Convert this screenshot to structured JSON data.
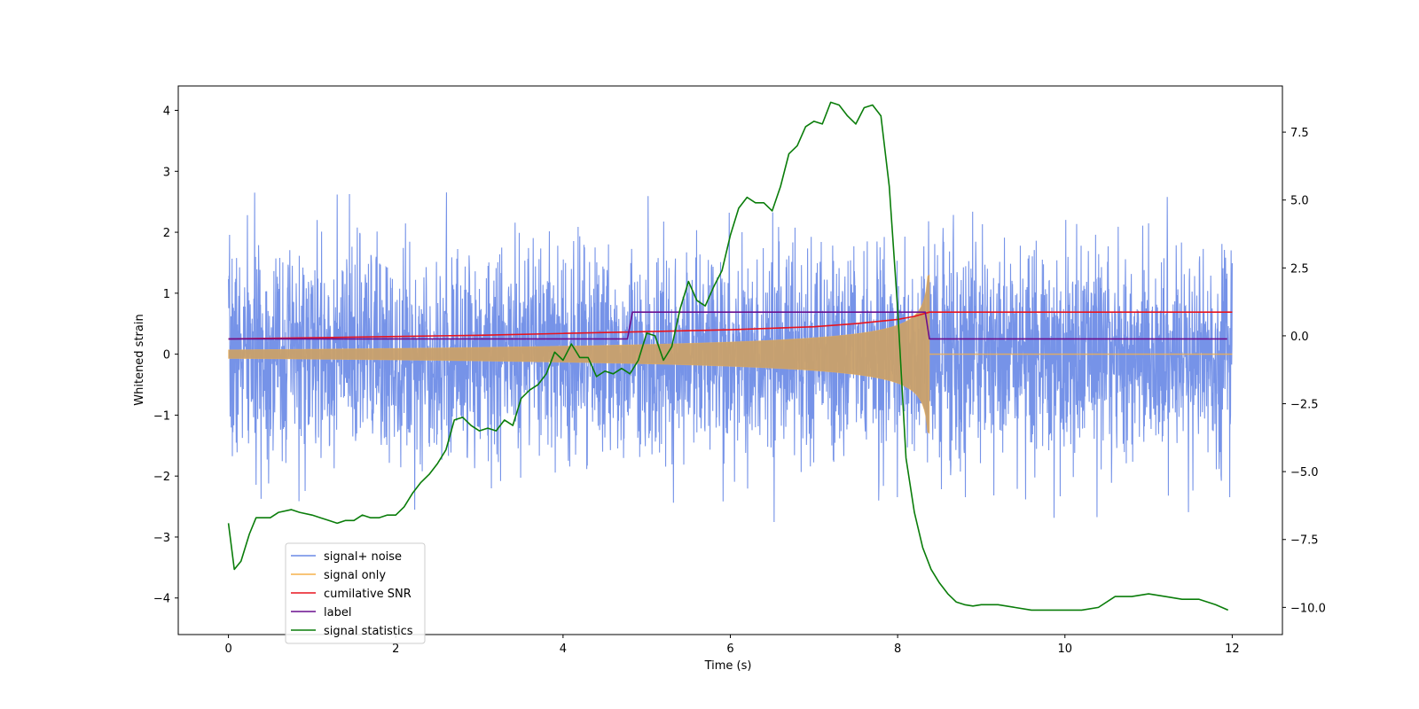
{
  "chart_data": {
    "type": "line",
    "title": "",
    "xlabel": "Time (s)",
    "ylabel": "Whitened strain",
    "xlim": [
      -0.6,
      12.6
    ],
    "ylim": [
      -4.6,
      4.4
    ],
    "ylim_right": [
      -11,
      9.2
    ],
    "x_ticks": [
      0,
      2,
      4,
      6,
      8,
      10,
      12
    ],
    "x_tick_labels": [
      "0",
      "2",
      "4",
      "6",
      "8",
      "10",
      "12"
    ],
    "y_ticks": [
      -4,
      -3,
      -2,
      -1,
      0,
      1,
      2,
      3,
      4
    ],
    "y_tick_labels": [
      "−4",
      "−3",
      "−2",
      "−1",
      "0",
      "1",
      "2",
      "3",
      "4"
    ],
    "y_right_ticks": [
      -10,
      -7.5,
      -5,
      -2.5,
      0,
      2.5,
      5,
      7.5
    ],
    "y_right_tick_labels": [
      "−10.0",
      "−7.5",
      "−5.0",
      "−2.5",
      "0.0",
      "2.5",
      "5.0",
      "7.5"
    ],
    "grid": false,
    "legend_position": "lower-left",
    "colors": {
      "noise": "#6a8ae6",
      "signal": "#f5b04a",
      "snr": "#e8141e",
      "label": "#6a0f8e",
      "stats": "#0a7d0a"
    },
    "noise": {
      "t_start": 0,
      "t_end": 12,
      "std": 0.85,
      "seed": 7
    },
    "signal": {
      "t_end": 8.38,
      "amp_start": 0.07,
      "amp_end": 1.3,
      "tail_end": 12
    },
    "series": [
      {
        "name": "signal+ noise",
        "axis": "left",
        "kind": "noise"
      },
      {
        "name": "signal only",
        "axis": "left",
        "kind": "chirp"
      },
      {
        "name": "cumilative SNR",
        "axis": "left",
        "kind": "line",
        "x": [
          0,
          1,
          2,
          3,
          4,
          5,
          6,
          7,
          7.5,
          8,
          8.2,
          8.38,
          9,
          10,
          11,
          12
        ],
        "y": [
          0.25,
          0.27,
          0.29,
          0.31,
          0.34,
          0.37,
          0.4,
          0.45,
          0.5,
          0.57,
          0.62,
          0.69,
          0.69,
          0.69,
          0.69,
          0.69
        ]
      },
      {
        "name": "label",
        "axis": "left",
        "kind": "line",
        "x": [
          0,
          4.77,
          4.83,
          8.33,
          8.38,
          11.94
        ],
        "y": [
          0.25,
          0.25,
          0.69,
          0.69,
          0.25,
          0.25
        ]
      },
      {
        "name": "signal statistics",
        "axis": "right",
        "kind": "line",
        "x": [
          0,
          0.07,
          0.15,
          0.25,
          0.33,
          0.5,
          0.6,
          0.75,
          0.85,
          1.0,
          1.1,
          1.2,
          1.3,
          1.4,
          1.5,
          1.6,
          1.7,
          1.8,
          1.9,
          2.0,
          2.1,
          2.2,
          2.3,
          2.4,
          2.5,
          2.6,
          2.7,
          2.8,
          2.9,
          3.0,
          3.1,
          3.2,
          3.3,
          3.4,
          3.5,
          3.6,
          3.7,
          3.8,
          3.9,
          4.0,
          4.1,
          4.2,
          4.3,
          4.4,
          4.5,
          4.6,
          4.7,
          4.8,
          4.9,
          5.0,
          5.1,
          5.2,
          5.3,
          5.4,
          5.5,
          5.6,
          5.7,
          5.8,
          5.9,
          6.0,
          6.1,
          6.2,
          6.3,
          6.4,
          6.5,
          6.6,
          6.7,
          6.8,
          6.9,
          7.0,
          7.1,
          7.2,
          7.3,
          7.4,
          7.5,
          7.6,
          7.7,
          7.8,
          7.9,
          8.0,
          8.1,
          8.2,
          8.3,
          8.4,
          8.5,
          8.6,
          8.7,
          8.8,
          8.9,
          9.0,
          9.2,
          9.4,
          9.6,
          9.8,
          10.0,
          10.2,
          10.4,
          10.6,
          10.8,
          11.0,
          11.2,
          11.4,
          11.6,
          11.8,
          11.95
        ],
        "y": [
          -6.9,
          -8.6,
          -8.3,
          -7.3,
          -6.7,
          -6.7,
          -6.5,
          -6.4,
          -6.5,
          -6.6,
          -6.7,
          -6.8,
          -6.9,
          -6.8,
          -6.8,
          -6.6,
          -6.7,
          -6.7,
          -6.6,
          -6.6,
          -6.3,
          -5.8,
          -5.4,
          -5.1,
          -4.7,
          -4.2,
          -3.1,
          -3.0,
          -3.3,
          -3.5,
          -3.4,
          -3.5,
          -3.1,
          -3.3,
          -2.3,
          -2.0,
          -1.8,
          -1.4,
          -0.6,
          -0.9,
          -0.3,
          -0.8,
          -0.8,
          -1.5,
          -1.3,
          -1.4,
          -1.2,
          -1.4,
          -0.9,
          0.1,
          0.0,
          -0.9,
          -0.4,
          1.0,
          2.0,
          1.3,
          1.1,
          1.8,
          2.4,
          3.7,
          4.7,
          5.1,
          4.9,
          4.9,
          4.6,
          5.5,
          6.7,
          7.0,
          7.7,
          7.9,
          7.8,
          8.6,
          8.5,
          8.1,
          7.8,
          8.4,
          8.5,
          8.1,
          5.5,
          1.0,
          -4.5,
          -6.5,
          -7.8,
          -8.6,
          -9.1,
          -9.5,
          -9.8,
          -9.9,
          -9.95,
          -9.9,
          -9.9,
          -10.0,
          -10.1,
          -10.1,
          -10.1,
          -10.1,
          -10.0,
          -9.6,
          -9.6,
          -9.5,
          -9.6,
          -9.7,
          -9.7,
          -9.9,
          -10.1
        ]
      }
    ]
  }
}
